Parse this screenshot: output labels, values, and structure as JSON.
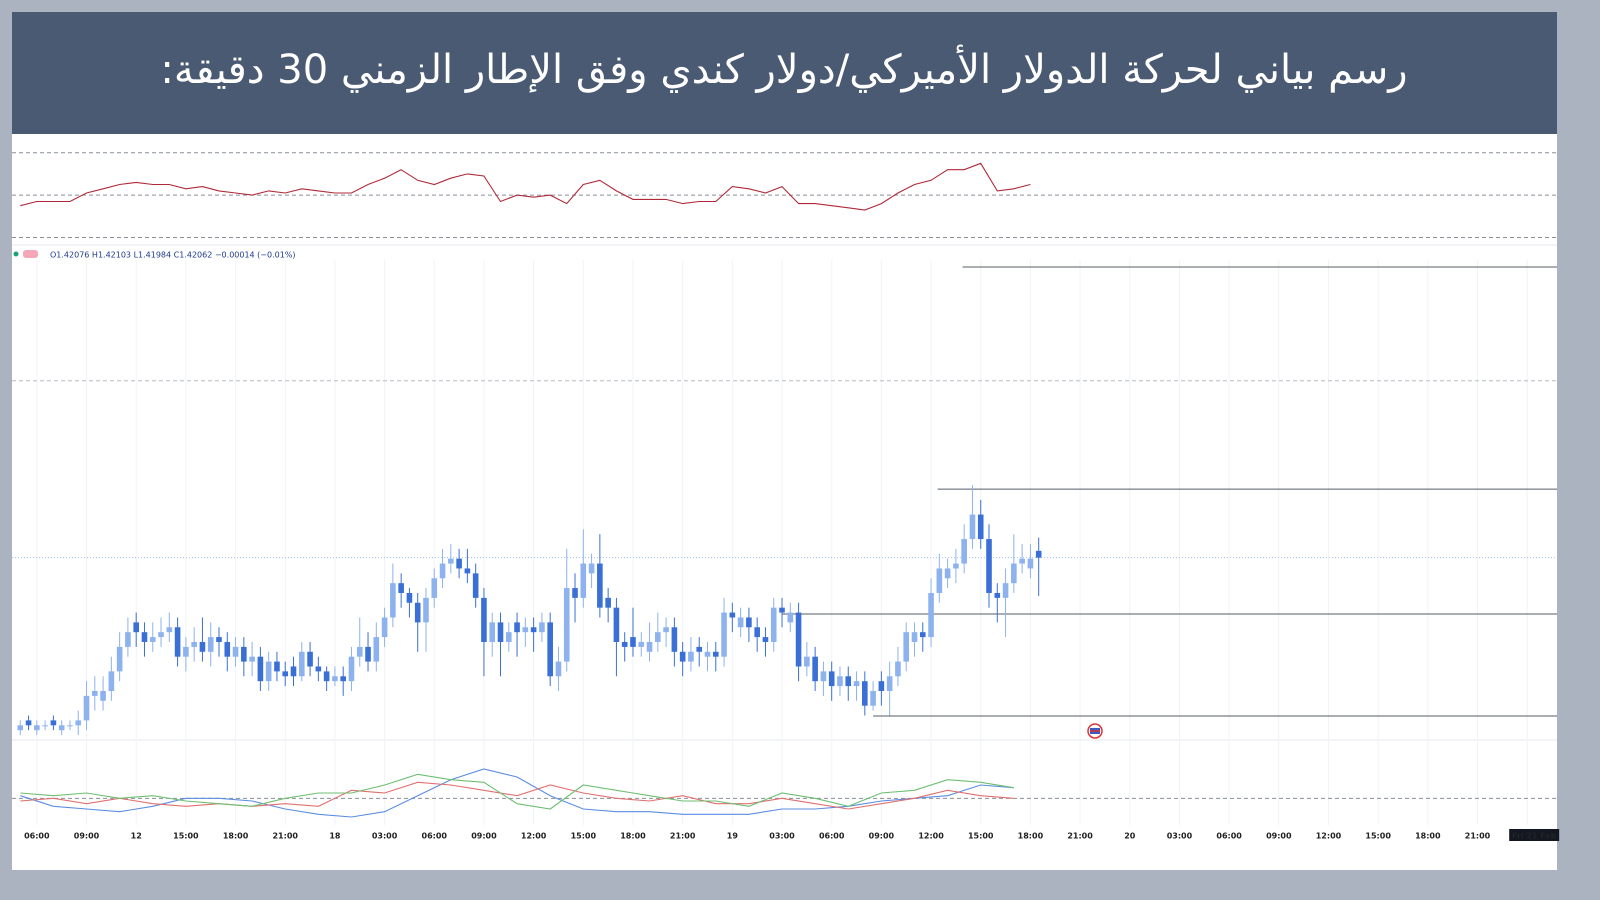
{
  "chart_data": {
    "type": "candlestick",
    "title": "رسم بياني لحركة الدولار الأميركي/دولار كندي وفق الإطار الزمني 30 دقيقة:",
    "legend_text": "O1.42076 H1.42103 L1.41984 C1.42062 −0.00014 (−0.01%)",
    "up_color": "#8db2ee",
    "down_color": "#3a6fd6",
    "grid": true,
    "xlim": [
      4.5,
      97.8
    ],
    "xticks": [
      {
        "value": 6,
        "label": "06:00"
      },
      {
        "value": 9,
        "label": "09:00"
      },
      12,
      {
        "value": 15,
        "label": "15:00"
      },
      {
        "value": 18,
        "label": "18:00"
      },
      {
        "value": 21,
        "label": "21:00"
      },
      {
        "value": 24,
        "label": "18"
      },
      {
        "value": 27,
        "label": "03:00"
      },
      {
        "value": 30,
        "label": "06:00"
      },
      {
        "value": 33,
        "label": "09:00"
      },
      {
        "value": 36,
        "label": "12:00"
      },
      {
        "value": 39,
        "label": "15:00"
      },
      {
        "value": 42,
        "label": "18:00"
      },
      {
        "value": 45,
        "label": "21:00"
      },
      {
        "value": 48,
        "label": "19"
      },
      {
        "value": 51,
        "label": "03:00"
      },
      {
        "value": 54,
        "label": "06:00"
      },
      {
        "value": 57,
        "label": "09:00"
      },
      {
        "value": 60,
        "label": "12:00"
      },
      {
        "value": 63,
        "label": "15:00"
      },
      {
        "value": 66,
        "label": "18:00"
      },
      {
        "value": 69,
        "label": "21:00"
      },
      {
        "value": 72,
        "label": "20"
      },
      {
        "value": 75,
        "label": "03:00"
      },
      {
        "value": 78,
        "label": "06:00"
      },
      {
        "value": 81,
        "label": "09:00"
      },
      {
        "value": 84,
        "label": "12:00"
      },
      {
        "value": 87,
        "label": "15:00"
      },
      {
        "value": 90,
        "label": "18:00"
      },
      {
        "value": 93,
        "label": "21:00"
      },
      {
        "value": 96,
        "label": "Fri 21 Feb"
      }
    ],
    "ylim": [
      1.4169,
      1.427
    ],
    "levels": [
      {
        "value": 1.42655,
        "from": 61.9
      },
      {
        "value": 1.42202,
        "from": 60.4
      },
      {
        "value": 1.41947,
        "from": 51.0
      },
      {
        "value": 1.41739,
        "from": 56.5
      }
    ],
    "dashed_levels": [
      1.42423
    ],
    "x": [
      5,
      5.5,
      6,
      6.5,
      7,
      7.5,
      8,
      8.5,
      9,
      9.5,
      10,
      10.5,
      11,
      11.5,
      12,
      12.5,
      13,
      13.5,
      14,
      14.5,
      15,
      15.5,
      16,
      16.5,
      17,
      17.5,
      18,
      18.5,
      19,
      19.5,
      20,
      20.5,
      21,
      21.5,
      22,
      22.5,
      23,
      23.5,
      24,
      24.5,
      25,
      25.5,
      26,
      26.5,
      27,
      27.5,
      28,
      28.5,
      29,
      29.5,
      30,
      30.5,
      31,
      31.5,
      32,
      32.5,
      33,
      33.5,
      34,
      34.5,
      35,
      35.5,
      36,
      36.5,
      37,
      37.5,
      38,
      38.5,
      39,
      39.5,
      40,
      40.5,
      41,
      41.5,
      42,
      42.5,
      43,
      43.5,
      44,
      44.5,
      45,
      45.5,
      46,
      46.5,
      47,
      47.5,
      48,
      48.5,
      49,
      49.5,
      50,
      50.5,
      51,
      51.5,
      52,
      52.5,
      53,
      53.5,
      54,
      54.5,
      55,
      55.5,
      56,
      56.5,
      57,
      57.5,
      58,
      58.5,
      59,
      59.5,
      60,
      60.5,
      61,
      61.5,
      62,
      62.5,
      63,
      63.5,
      64,
      64.5,
      65,
      65.5,
      66,
      66.5
    ],
    "open": [
      1.4171,
      1.4173,
      1.4171,
      1.4172,
      1.4173,
      1.4171,
      1.4172,
      1.4172,
      1.4173,
      1.4178,
      1.4177,
      1.4179,
      1.4183,
      1.4188,
      1.4193,
      1.4191,
      1.4189,
      1.419,
      1.4191,
      1.4192,
      1.4186,
      1.4188,
      1.4189,
      1.4187,
      1.419,
      1.4189,
      1.4186,
      1.4188,
      1.4185,
      1.4186,
      1.4181,
      1.4185,
      1.4183,
      1.4184,
      1.4182,
      1.4187,
      1.4184,
      1.4183,
      1.4181,
      1.4182,
      1.4181,
      1.4186,
      1.4188,
      1.4185,
      1.419,
      1.4194,
      1.4201,
      1.4199,
      1.4197,
      1.4193,
      1.4198,
      1.4202,
      1.4205,
      1.4206,
      1.4204,
      1.4203,
      1.4198,
      1.4189,
      1.4193,
      1.4189,
      1.4193,
      1.4191,
      1.4192,
      1.4191,
      1.4193,
      1.4182,
      1.4185,
      1.42,
      1.4198,
      1.4203,
      1.4205,
      1.4198,
      1.4196,
      1.4189,
      1.419,
      1.4188,
      1.4187,
      1.4189,
      1.4191,
      1.4192,
      1.4187,
      1.4185,
      1.4188,
      1.4186,
      1.4187,
      1.4186,
      1.4195,
      1.4192,
      1.4194,
      1.4192,
      1.419,
      1.4189,
      1.4196,
      1.4193,
      1.4195,
      1.4184,
      1.4186,
      1.4181,
      1.4183,
      1.418,
      1.4182,
      1.418,
      1.4181,
      1.4176,
      1.4181,
      1.4179,
      1.4182,
      1.4185,
      1.4189,
      1.4191,
      1.419,
      1.4199,
      1.4202,
      1.4204,
      1.4205,
      1.421,
      1.4215,
      1.421,
      1.4199,
      1.4198,
      1.4201,
      1.4205,
      1.4204,
      1.42076
    ],
    "high": [
      1.4173,
      1.4174,
      1.4173,
      1.4173,
      1.4174,
      1.4173,
      1.4173,
      1.4175,
      1.4181,
      1.4182,
      1.4182,
      1.4186,
      1.4191,
      1.4194,
      1.4195,
      1.4193,
      1.4193,
      1.4194,
      1.4195,
      1.4194,
      1.419,
      1.4192,
      1.4194,
      1.4193,
      1.4192,
      1.4191,
      1.419,
      1.419,
      1.4189,
      1.4188,
      1.4187,
      1.4187,
      1.4185,
      1.4186,
      1.4189,
      1.4189,
      1.4186,
      1.4184,
      1.4184,
      1.4184,
      1.4188,
      1.4194,
      1.4191,
      1.4193,
      1.4196,
      1.4205,
      1.4203,
      1.42,
      1.4199,
      1.42,
      1.4204,
      1.4208,
      1.4209,
      1.4208,
      1.4208,
      1.4205,
      1.42,
      1.4195,
      1.4195,
      1.4193,
      1.4195,
      1.4194,
      1.4194,
      1.4195,
      1.4195,
      1.4188,
      1.4208,
      1.4203,
      1.4212,
      1.4207,
      1.4211,
      1.42,
      1.4198,
      1.4191,
      1.4196,
      1.4191,
      1.4193,
      1.4195,
      1.4194,
      1.4194,
      1.4189,
      1.419,
      1.419,
      1.4189,
      1.4189,
      1.4198,
      1.4197,
      1.4196,
      1.4196,
      1.4194,
      1.4192,
      1.4198,
      1.4198,
      1.4197,
      1.4197,
      1.4189,
      1.4188,
      1.4185,
      1.4185,
      1.4184,
      1.4184,
      1.4183,
      1.4183,
      1.4181,
      1.4183,
      1.4185,
      1.4188,
      1.4193,
      1.4193,
      1.4193,
      1.4202,
      1.4207,
      1.4206,
      1.4208,
      1.4213,
      1.4221,
      1.4218,
      1.4213,
      1.4201,
      1.4204,
      1.4211,
      1.4209,
      1.4209,
      1.42103
    ],
    "low": [
      1.417,
      1.4171,
      1.417,
      1.4171,
      1.4171,
      1.417,
      1.4171,
      1.417,
      1.4171,
      1.4175,
      1.4175,
      1.4177,
      1.4181,
      1.4186,
      1.4188,
      1.4186,
      1.4187,
      1.4188,
      1.4189,
      1.4184,
      1.4183,
      1.4185,
      1.4185,
      1.4184,
      1.4186,
      1.4183,
      1.4184,
      1.4182,
      1.4182,
      1.4179,
      1.4179,
      1.4181,
      1.418,
      1.418,
      1.4181,
      1.4182,
      1.4181,
      1.4179,
      1.418,
      1.4178,
      1.4179,
      1.4184,
      1.4183,
      1.4183,
      1.4188,
      1.4192,
      1.4196,
      1.4194,
      1.4187,
      1.4187,
      1.4196,
      1.42,
      1.4203,
      1.4202,
      1.4201,
      1.4196,
      1.4182,
      1.4186,
      1.4182,
      1.4187,
      1.4186,
      1.4188,
      1.4187,
      1.4189,
      1.418,
      1.4179,
      1.4183,
      1.4193,
      1.4196,
      1.42,
      1.4194,
      1.4193,
      1.4182,
      1.4185,
      1.4186,
      1.4186,
      1.4185,
      1.4187,
      1.4188,
      1.4184,
      1.4182,
      1.4183,
      1.4184,
      1.4183,
      1.4183,
      1.4184,
      1.4191,
      1.419,
      1.4189,
      1.4187,
      1.4186,
      1.4187,
      1.4192,
      1.4191,
      1.4181,
      1.4182,
      1.4179,
      1.4178,
      1.4177,
      1.4178,
      1.4177,
      1.4177,
      1.4174,
      1.4175,
      1.4176,
      1.4174,
      1.418,
      1.4183,
      1.4186,
      1.4187,
      1.4188,
      1.4197,
      1.42,
      1.4201,
      1.4203,
      1.4208,
      1.4208,
      1.4196,
      1.4193,
      1.419,
      1.4199,
      1.4203,
      1.4202,
      1.41984
    ],
    "close": [
      1.4172,
      1.4172,
      1.4172,
      1.4172,
      1.4172,
      1.4172,
      1.4172,
      1.4173,
      1.4178,
      1.4179,
      1.4179,
      1.4183,
      1.4188,
      1.4191,
      1.4191,
      1.4189,
      1.419,
      1.4191,
      1.4192,
      1.4186,
      1.4188,
      1.4189,
      1.4187,
      1.419,
      1.4189,
      1.4186,
      1.4188,
      1.4185,
      1.4186,
      1.4181,
      1.4185,
      1.4183,
      1.4182,
      1.4182,
      1.4187,
      1.4184,
      1.4183,
      1.4181,
      1.4182,
      1.4181,
      1.4186,
      1.4188,
      1.4185,
      1.419,
      1.4194,
      1.4201,
      1.4199,
      1.4197,
      1.4193,
      1.4198,
      1.4202,
      1.4205,
      1.4206,
      1.4204,
      1.4203,
      1.4198,
      1.4189,
      1.4193,
      1.4189,
      1.4191,
      1.4191,
      1.4192,
      1.4191,
      1.4193,
      1.4182,
      1.4185,
      1.42,
      1.4198,
      1.4205,
      1.4205,
      1.4196,
      1.4196,
      1.4189,
      1.4188,
      1.4188,
      1.4189,
      1.4189,
      1.4191,
      1.4192,
      1.4187,
      1.4185,
      1.4187,
      1.4187,
      1.4187,
      1.4186,
      1.4195,
      1.4194,
      1.4194,
      1.4192,
      1.419,
      1.4189,
      1.4196,
      1.4195,
      1.4195,
      1.4184,
      1.4186,
      1.4181,
      1.4183,
      1.418,
      1.4182,
      1.418,
      1.4181,
      1.4176,
      1.4179,
      1.4179,
      1.4182,
      1.4185,
      1.4191,
      1.4191,
      1.419,
      1.4199,
      1.4204,
      1.4204,
      1.4205,
      1.421,
      1.4215,
      1.421,
      1.4199,
      1.4198,
      1.4201,
      1.4205,
      1.4206,
      1.4206,
      1.42062
    ],
    "rsi": {
      "type": "line",
      "ylim": [
        26,
        76
      ],
      "levels": [
        30,
        50,
        70
      ],
      "x": [
        5,
        6,
        7,
        8,
        9,
        10,
        11,
        12,
        13,
        14,
        15,
        16,
        17,
        18,
        19,
        20,
        21,
        22,
        23,
        24,
        25,
        26,
        27,
        28,
        29,
        30,
        31,
        32,
        33,
        34,
        35,
        36,
        37,
        38,
        39,
        40,
        41,
        42,
        43,
        44,
        45,
        46,
        47,
        48,
        49,
        50,
        51,
        52,
        53,
        54,
        55,
        56,
        57,
        58,
        59,
        60,
        61,
        62,
        63,
        64,
        65,
        66
      ],
      "series": [
        {
          "color": "#b0293a",
          "values": [
            45,
            47,
            47,
            47,
            51,
            53,
            55,
            56,
            55,
            55,
            53,
            54,
            52,
            51,
            50,
            52,
            51,
            53,
            52,
            51,
            51,
            55,
            58,
            62,
            57,
            55,
            58,
            60,
            59,
            47,
            50,
            49,
            50,
            46,
            55,
            57,
            52,
            48,
            48,
            48,
            46,
            47,
            47,
            54,
            53,
            51,
            54,
            46,
            46,
            45,
            44,
            43,
            46,
            51,
            55,
            57,
            62,
            62,
            65,
            52,
            53,
            55
          ]
        }
      ]
    },
    "oscillator": {
      "type": "line",
      "ylim": [
        -1,
        2
      ],
      "levels": [
        0
      ],
      "x": [
        5,
        7,
        9,
        11,
        13,
        15,
        17,
        19,
        21,
        23,
        25,
        27,
        29,
        31,
        33,
        35,
        37,
        39,
        41,
        43,
        45,
        47,
        49,
        51,
        53,
        55,
        57,
        59,
        61,
        63,
        65
      ],
      "series": [
        {
          "color": "#5b8de0",
          "values": [
            0.1,
            -0.3,
            -0.4,
            -0.5,
            -0.3,
            0,
            0,
            -0.1,
            -0.4,
            -0.6,
            -0.7,
            -0.5,
            0.1,
            0.7,
            1.1,
            0.8,
            0.1,
            -0.4,
            -0.5,
            -0.5,
            -0.6,
            -0.6,
            -0.6,
            -0.4,
            -0.4,
            -0.3,
            -0.1,
            0,
            0.1,
            0.5,
            0.4
          ]
        },
        {
          "color": "#e07070",
          "values": [
            -0.1,
            0,
            -0.2,
            0,
            -0.2,
            -0.3,
            -0.2,
            -0.3,
            -0.2,
            -0.3,
            0.3,
            0.2,
            0.6,
            0.5,
            0.3,
            0.1,
            0.5,
            0.2,
            0,
            -0.1,
            0.1,
            -0.2,
            -0.2,
            0,
            -0.2,
            -0.4,
            -0.2,
            0,
            0.3,
            0.1,
            0
          ]
        },
        {
          "color": "#6fbf73",
          "values": [
            0.2,
            0.1,
            0.2,
            0,
            0.1,
            -0.1,
            -0.2,
            -0.3,
            0,
            0.2,
            0.2,
            0.5,
            0.9,
            0.7,
            0.6,
            -0.2,
            -0.4,
            0.5,
            0.3,
            0.1,
            -0.1,
            -0.1,
            -0.3,
            0.2,
            0,
            -0.3,
            0.2,
            0.3,
            0.7,
            0.6,
            0.4
          ]
        }
      ]
    }
  }
}
